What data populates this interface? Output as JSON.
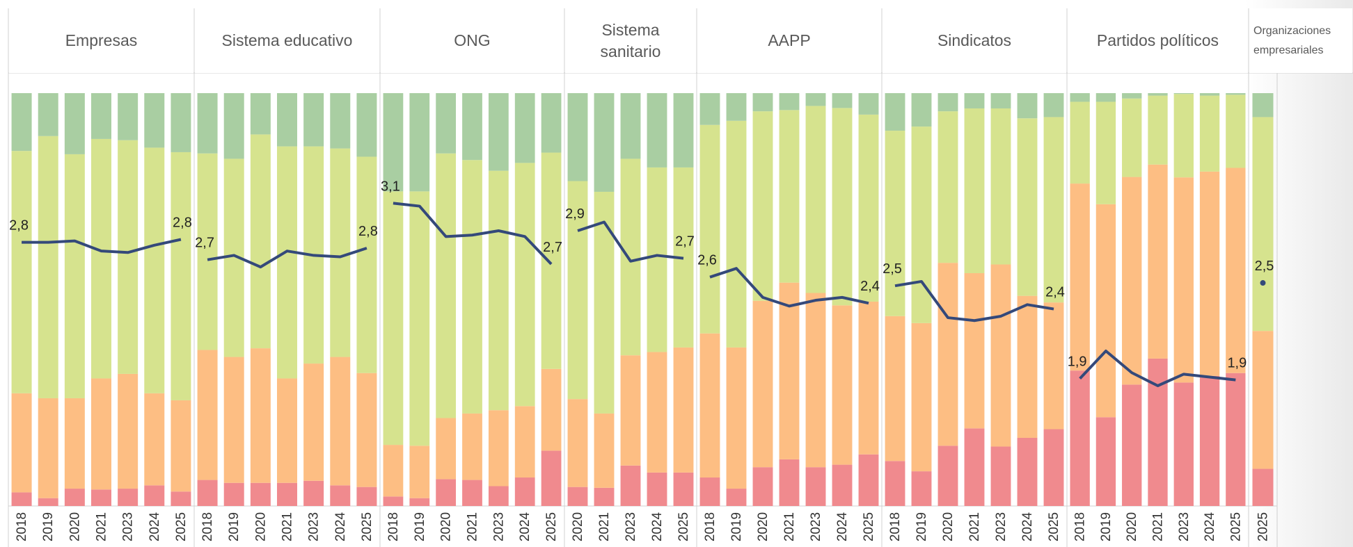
{
  "chart_data": [
    {
      "type": "bar",
      "title": "Empresas",
      "categories": [
        "2018",
        "2019",
        "2020",
        "2021",
        "2023",
        "2024",
        "2025"
      ],
      "ylim": [
        0,
        100
      ],
      "y2lim": [
        1,
        3.85
      ],
      "series": [
        {
          "color": "#f08a8e",
          "values": [
            3.3,
            1.9,
            4.2,
            4.0,
            4.2,
            5.0,
            3.5
          ]
        },
        {
          "color": "#fdbe83",
          "values": [
            24.0,
            24.2,
            21.9,
            26.9,
            27.8,
            22.3,
            22.1
          ]
        },
        {
          "color": "#d6e38e",
          "values": [
            58.7,
            63.5,
            59.1,
            58.0,
            56.6,
            59.5,
            60.1
          ]
        },
        {
          "color": "#a9cea2",
          "values": [
            14.0,
            10.4,
            14.8,
            11.1,
            11.4,
            13.2,
            14.3
          ]
        },
        {
          "type": "line",
          "axis": "y2",
          "color": "#34497a",
          "values": [
            2.82,
            2.82,
            2.83,
            2.76,
            2.75,
            2.8,
            2.84
          ],
          "value_labels": [
            "2,8",
            null,
            null,
            null,
            null,
            null,
            "2,8"
          ]
        }
      ]
    },
    {
      "type": "bar",
      "title": "Sistema educativo",
      "categories": [
        "2018",
        "2019",
        "2020",
        "2021",
        "2023",
        "2024",
        "2025"
      ],
      "ylim": [
        0,
        100
      ],
      "y2lim": [
        1,
        3.85
      ],
      "series": [
        {
          "color": "#f08a8e",
          "values": [
            6.3,
            5.6,
            5.6,
            5.6,
            6.1,
            5.0,
            4.6
          ]
        },
        {
          "color": "#fdbe83",
          "values": [
            31.5,
            30.5,
            32.6,
            25.3,
            28.4,
            31.1,
            27.6
          ]
        },
        {
          "color": "#d6e38e",
          "values": [
            47.6,
            48.0,
            51.8,
            56.2,
            52.6,
            50.5,
            52.4
          ]
        },
        {
          "color": "#a9cea2",
          "values": [
            14.6,
            15.9,
            10.0,
            12.9,
            12.9,
            13.4,
            15.4
          ]
        },
        {
          "type": "line",
          "axis": "y2",
          "color": "#34497a",
          "values": [
            2.7,
            2.73,
            2.65,
            2.76,
            2.73,
            2.72,
            2.78
          ],
          "value_labels": [
            "2,7",
            null,
            null,
            null,
            null,
            null,
            "2,8"
          ]
        }
      ]
    },
    {
      "type": "bar",
      "title": "ONG",
      "categories": [
        "2018",
        "2019",
        "2020",
        "2021",
        "2023",
        "2024",
        "2025"
      ],
      "ylim": [
        0,
        100
      ],
      "y2lim": [
        1,
        3.85
      ],
      "series": [
        {
          "color": "#f08a8e",
          "values": [
            2.3,
            1.9,
            6.5,
            6.3,
            4.8,
            6.9,
            13.4
          ]
        },
        {
          "color": "#fdbe83",
          "values": [
            12.5,
            12.7,
            14.8,
            16.1,
            18.4,
            17.3,
            19.8
          ]
        },
        {
          "color": "#d6e38e",
          "values": [
            61.4,
            61.6,
            64.1,
            61.4,
            58.0,
            58.9,
            52.4
          ]
        },
        {
          "color": "#a9cea2",
          "values": [
            23.8,
            23.8,
            14.6,
            16.2,
            18.8,
            16.9,
            14.4
          ]
        },
        {
          "type": "line",
          "axis": "y2",
          "color": "#34497a",
          "values": [
            3.09,
            3.07,
            2.86,
            2.87,
            2.9,
            2.86,
            2.67
          ],
          "value_labels": [
            "3,1",
            null,
            null,
            null,
            null,
            null,
            "2,7"
          ]
        }
      ]
    },
    {
      "type": "bar",
      "title": "Sistema sanitario",
      "categories": [
        "2020",
        "2021",
        "2023",
        "2024",
        "2025"
      ],
      "ylim": [
        0,
        100
      ],
      "y2lim": [
        1,
        3.85
      ],
      "series": [
        {
          "color": "#f08a8e",
          "values": [
            4.6,
            4.4,
            9.8,
            8.1,
            8.1
          ]
        },
        {
          "color": "#fdbe83",
          "values": [
            21.3,
            18.0,
            26.7,
            29.2,
            30.3
          ]
        },
        {
          "color": "#d6e38e",
          "values": [
            52.8,
            53.7,
            47.6,
            44.7,
            43.6
          ]
        },
        {
          "color": "#a9cea2",
          "values": [
            21.3,
            23.9,
            15.9,
            18.0,
            18.0
          ]
        },
        {
          "type": "line",
          "axis": "y2",
          "color": "#34497a",
          "values": [
            2.9,
            2.96,
            2.69,
            2.73,
            2.71
          ],
          "value_labels": [
            "2,9",
            null,
            null,
            null,
            "2,7"
          ]
        }
      ]
    },
    {
      "type": "bar",
      "title": "AAPP",
      "categories": [
        "2018",
        "2019",
        "2020",
        "2021",
        "2023",
        "2024",
        "2025"
      ],
      "ylim": [
        0,
        100
      ],
      "y2lim": [
        1,
        3.85
      ],
      "series": [
        {
          "color": "#f08a8e",
          "values": [
            6.9,
            4.2,
            9.4,
            11.3,
            9.4,
            10.0,
            12.5
          ]
        },
        {
          "color": "#fdbe83",
          "values": [
            34.9,
            34.2,
            40.3,
            42.8,
            42.2,
            38.6,
            37.0
          ]
        },
        {
          "color": "#d6e38e",
          "values": [
            50.5,
            54.9,
            45.9,
            41.8,
            45.3,
            47.8,
            45.3
          ]
        },
        {
          "color": "#a9cea2",
          "values": [
            7.7,
            6.7,
            4.4,
            4.1,
            3.1,
            3.6,
            5.2
          ]
        },
        {
          "type": "line",
          "axis": "y2",
          "color": "#34497a",
          "values": [
            2.58,
            2.64,
            2.44,
            2.38,
            2.42,
            2.44,
            2.4
          ],
          "value_labels": [
            "2,6",
            null,
            null,
            null,
            null,
            null,
            "2,4"
          ]
        }
      ]
    },
    {
      "type": "bar",
      "title": "Sindicatos",
      "categories": [
        "2018",
        "2019",
        "2020",
        "2021",
        "2023",
        "2024",
        "2025"
      ],
      "ylim": [
        0,
        100
      ],
      "y2lim": [
        1,
        3.85
      ],
      "series": [
        {
          "color": "#f08a8e",
          "values": [
            10.9,
            8.4,
            14.6,
            18.8,
            14.4,
            16.5,
            18.6
          ]
        },
        {
          "color": "#fdbe83",
          "values": [
            35.1,
            35.9,
            44.3,
            37.6,
            44.1,
            34.4,
            30.7
          ]
        },
        {
          "color": "#d6e38e",
          "values": [
            44.9,
            47.6,
            36.7,
            39.9,
            37.8,
            43.0,
            44.9
          ]
        },
        {
          "color": "#a9cea2",
          "values": [
            9.1,
            8.1,
            4.4,
            3.7,
            3.7,
            6.1,
            5.8
          ]
        },
        {
          "type": "line",
          "axis": "y2",
          "color": "#34497a",
          "values": [
            2.52,
            2.55,
            2.3,
            2.28,
            2.31,
            2.39,
            2.36
          ],
          "value_labels": [
            "2,5",
            null,
            null,
            null,
            null,
            null,
            "2,4"
          ]
        }
      ]
    },
    {
      "type": "bar",
      "title": "Partidos políticos",
      "categories": [
        "2018",
        "2019",
        "2020",
        "2021",
        "2023",
        "2024",
        "2025"
      ],
      "ylim": [
        0,
        100
      ],
      "y2lim": [
        1,
        3.85
      ],
      "series": [
        {
          "color": "#f08a8e",
          "values": [
            32.8,
            21.5,
            29.4,
            35.7,
            29.9,
            31.5,
            32.2
          ]
        },
        {
          "color": "#fdbe83",
          "values": [
            45.3,
            51.6,
            50.3,
            47.0,
            49.7,
            49.5,
            49.7
          ]
        },
        {
          "color": "#d6e38e",
          "values": [
            19.8,
            24.8,
            19.0,
            16.7,
            20.2,
            18.4,
            17.7
          ]
        },
        {
          "color": "#a9cea2",
          "values": [
            2.1,
            2.1,
            1.3,
            0.6,
            0.2,
            0.6,
            0.4
          ]
        },
        {
          "type": "line",
          "axis": "y2",
          "color": "#34497a",
          "values": [
            1.88,
            2.07,
            1.92,
            1.83,
            1.91,
            1.89,
            1.87
          ],
          "value_labels": [
            "1,9",
            null,
            null,
            null,
            null,
            null,
            "1,9"
          ]
        }
      ]
    },
    {
      "type": "bar",
      "title": "Organizaciones empresariales",
      "categories": [
        "2025"
      ],
      "ylim": [
        0,
        100
      ],
      "y2lim": [
        1,
        3.85
      ],
      "series": [
        {
          "color": "#f08a8e",
          "values": [
            9.0
          ]
        },
        {
          "color": "#fdbe83",
          "values": [
            33.4
          ]
        },
        {
          "color": "#d6e38e",
          "values": [
            51.8
          ]
        },
        {
          "color": "#a9cea2",
          "values": [
            5.8
          ]
        },
        {
          "type": "line",
          "axis": "y2",
          "color": "#34497a",
          "values": [
            2.54
          ],
          "value_labels": [
            "2,5"
          ]
        }
      ]
    }
  ]
}
